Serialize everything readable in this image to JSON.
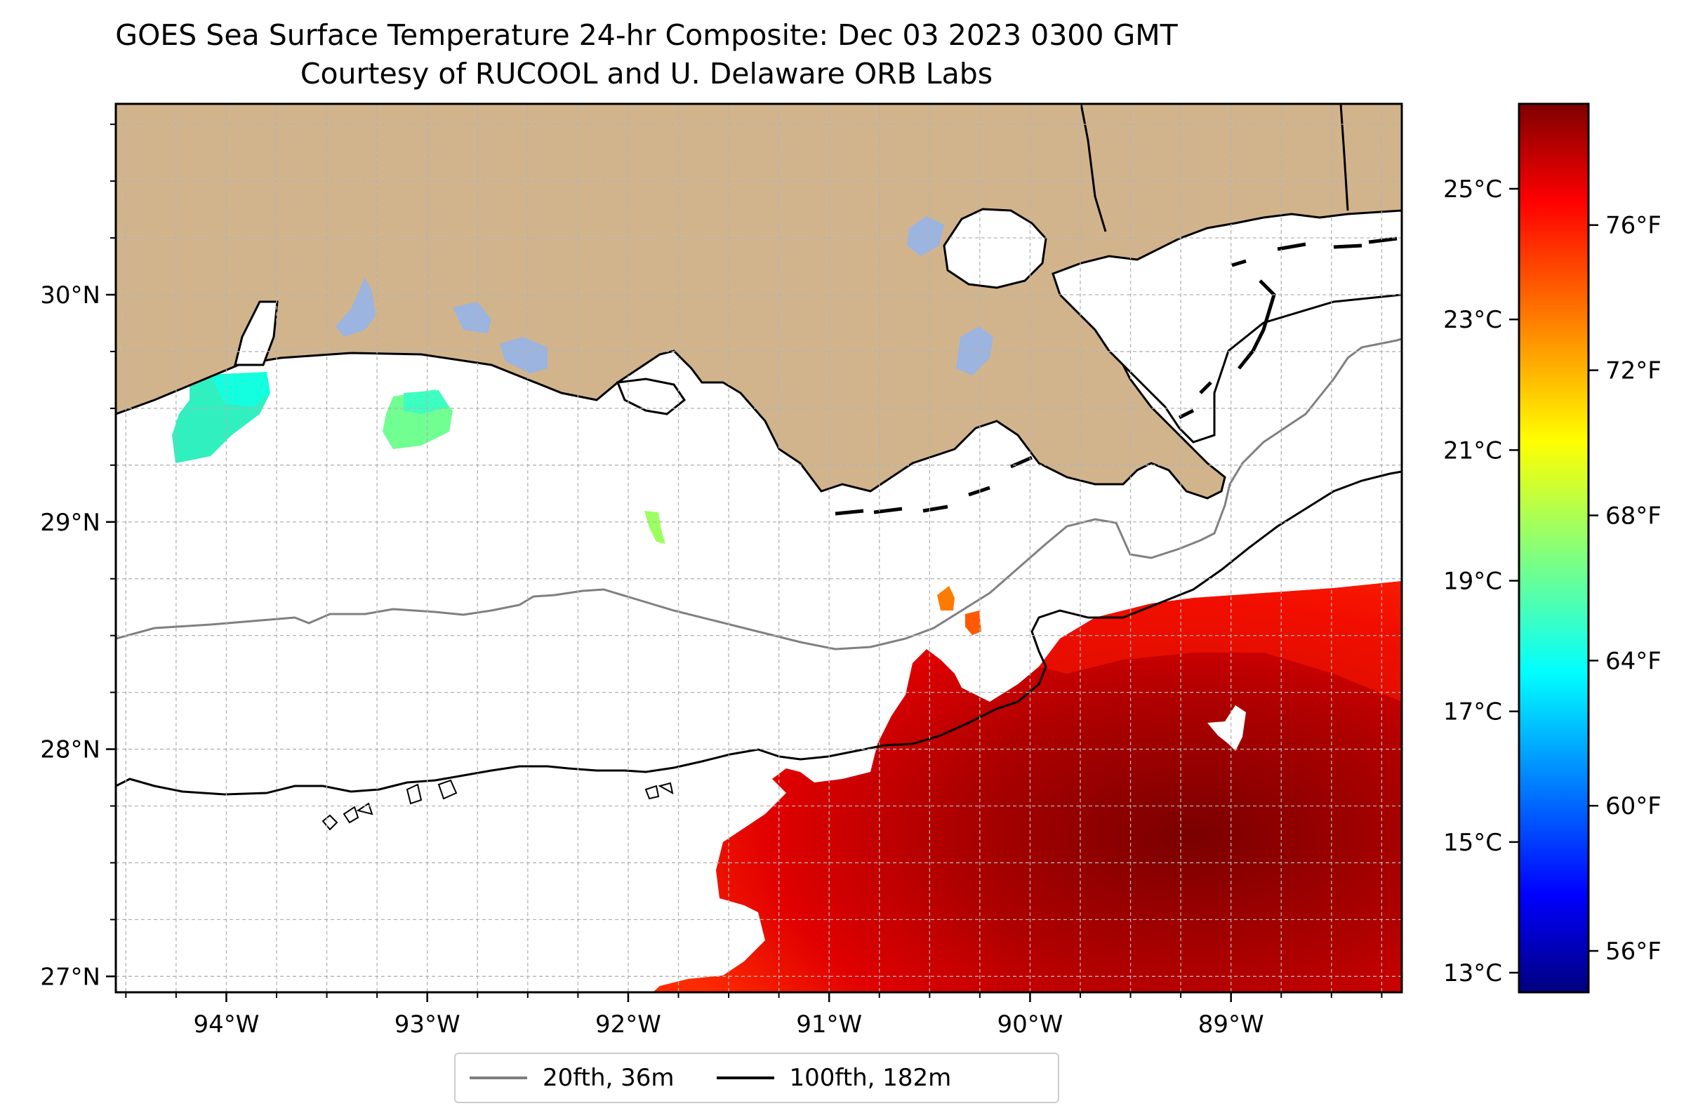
{
  "figure": {
    "title": "GOES Sea Surface Temperature 24-hr Composite: Dec 03 2023 0300 GMT",
    "subtitle": "Courtesy of RUCOOL and U. Delaware ORB Labs"
  },
  "map": {
    "lon_range": [
      -94.55,
      -88.15
    ],
    "lat_range": [
      26.93,
      30.84
    ],
    "colors": {
      "land": "#d2b48c",
      "inland_water": "#9bb4e0",
      "ocean_nodata": "#ffffff",
      "coastline": "#000000",
      "isobath_20fth": "#808080",
      "isobath_100fth": "#000000",
      "grid": "#b3b3b3"
    },
    "x_ticks": [
      {
        "value": -94,
        "label": "94°W"
      },
      {
        "value": -93,
        "label": "93°W"
      },
      {
        "value": -92,
        "label": "92°W"
      },
      {
        "value": -91,
        "label": "91°W"
      },
      {
        "value": -90,
        "label": "90°W"
      },
      {
        "value": -89,
        "label": "89°W"
      }
    ],
    "y_ticks": [
      {
        "value": 27,
        "label": "27°N"
      },
      {
        "value": 28,
        "label": "28°N"
      },
      {
        "value": 29,
        "label": "29°N"
      },
      {
        "value": 30,
        "label": "30°N"
      }
    ]
  },
  "legend": {
    "items": [
      {
        "label": "20fth, 36m",
        "color": "#808080"
      },
      {
        "label": "100fth, 182m",
        "color": "#000000"
      }
    ]
  },
  "colorbar": {
    "colormap": "jet",
    "range_c": [
      12.7,
      26.3
    ],
    "celsius_ticks": [
      {
        "value": 13,
        "label": "13°C"
      },
      {
        "value": 15,
        "label": "15°C"
      },
      {
        "value": 17,
        "label": "17°C"
      },
      {
        "value": 19,
        "label": "19°C"
      },
      {
        "value": 21,
        "label": "21°C"
      },
      {
        "value": 23,
        "label": "23°C"
      },
      {
        "value": 25,
        "label": "25°C"
      }
    ],
    "fahrenheit_ticks": [
      {
        "value": 56,
        "label": "56°F"
      },
      {
        "value": 60,
        "label": "60°F"
      },
      {
        "value": 64,
        "label": "64°F"
      },
      {
        "value": 68,
        "label": "68°F"
      },
      {
        "value": 72,
        "label": "72°F"
      },
      {
        "value": 76,
        "label": "76°F"
      }
    ]
  },
  "chart_data": {
    "type": "heatmap",
    "title": "GOES Sea Surface Temperature 24-hr Composite: Dec 03 2023 0300 GMT",
    "subtitle": "Courtesy of RUCOOL and U. Delaware ORB Labs",
    "xlim": [
      -94.55,
      -88.15
    ],
    "ylim": [
      26.93,
      30.84
    ],
    "value_unit": "°C",
    "observed_patches": [
      {
        "lon": -94.15,
        "lat": 29.5,
        "sst_c": 17.6
      },
      {
        "lon": -93.15,
        "lat": 29.5,
        "sst_c": 18.3
      },
      {
        "lon": -91.85,
        "lat": 29.0,
        "sst_c": 19.5
      },
      {
        "lon": -90.35,
        "lat": 28.65,
        "sst_c": 22.8
      },
      {
        "lon": -90.25,
        "lat": 28.57,
        "sst_c": 22.9
      },
      {
        "lon": -90.2,
        "lat": 28.2,
        "sst_c": 24.9
      },
      {
        "lon": -89.5,
        "lat": 28.3,
        "sst_c": 25.0
      },
      {
        "lon": -88.4,
        "lat": 28.2,
        "sst_c": 24.4
      },
      {
        "lon": -89.2,
        "lat": 27.65,
        "sst_c": 25.9
      },
      {
        "lon": -91.2,
        "lat": 27.4,
        "sst_c": 25.3
      },
      {
        "lon": -90.5,
        "lat": 27.1,
        "sst_c": 25.7
      },
      {
        "lon": -89.5,
        "lat": 27.2,
        "sst_c": 26.0
      }
    ]
  }
}
